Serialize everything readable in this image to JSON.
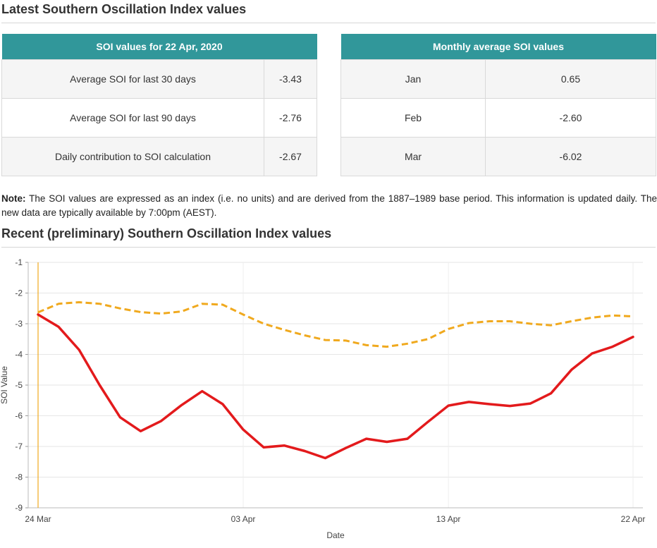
{
  "heading1": "Latest Southern Oscillation Index values",
  "table_latest": {
    "header": "SOI values for 22 Apr, 2020",
    "rows": [
      {
        "label": "Average SOI for last 30 days",
        "value": "-3.43"
      },
      {
        "label": "Average SOI for last 90 days",
        "value": "-2.76"
      },
      {
        "label": "Daily contribution to SOI calculation",
        "value": "-2.67"
      }
    ]
  },
  "table_monthly": {
    "header": "Monthly average SOI values",
    "rows": [
      {
        "month": "Jan",
        "value": "0.65"
      },
      {
        "month": "Feb",
        "value": "-2.60"
      },
      {
        "month": "Mar",
        "value": "-6.02"
      }
    ]
  },
  "note": {
    "label": "Note:",
    "text": " The SOI values are expressed as an index (i.e. no units) and are derived from the 1887–1989 base period. This information is updated daily. The new data are typically available by 7:00pm (AEST)."
  },
  "heading2": "Recent (preliminary) Southern Oscillation Index values",
  "colors": {
    "header_bg": "#31979a",
    "series_30day": "#e31a1c",
    "series_90day": "#f0a91e",
    "marker_line": "#f0a91e"
  },
  "chart_data": {
    "type": "line",
    "xlabel": "Date",
    "ylabel": "SOI Value",
    "ylim": [
      -9,
      -1
    ],
    "yticks": [
      -1,
      -2,
      -3,
      -4,
      -5,
      -6,
      -7,
      -8,
      -9
    ],
    "x_range": [
      "2020-03-24",
      "2020-04-22"
    ],
    "xticks": [
      {
        "date": "2020-03-24",
        "label": "24 Mar"
      },
      {
        "date": "2020-04-03",
        "label": "03 Apr"
      },
      {
        "date": "2020-04-13",
        "label": "13 Apr"
      },
      {
        "date": "2020-04-22",
        "label": "22 Apr"
      }
    ],
    "grid": true,
    "legend": "none",
    "x": [
      "2020-03-24",
      "2020-03-25",
      "2020-03-26",
      "2020-03-27",
      "2020-03-28",
      "2020-03-29",
      "2020-03-30",
      "2020-03-31",
      "2020-04-01",
      "2020-04-02",
      "2020-04-03",
      "2020-04-04",
      "2020-04-05",
      "2020-04-06",
      "2020-04-07",
      "2020-04-08",
      "2020-04-09",
      "2020-04-10",
      "2020-04-11",
      "2020-04-12",
      "2020-04-13",
      "2020-04-14",
      "2020-04-15",
      "2020-04-16",
      "2020-04-17",
      "2020-04-18",
      "2020-04-19",
      "2020-04-20",
      "2020-04-21",
      "2020-04-22"
    ],
    "series": [
      {
        "style": "solid",
        "values": [
          -2.7,
          -3.1,
          -3.85,
          -5.0,
          -6.05,
          -6.5,
          -6.17,
          -5.65,
          -5.2,
          -5.62,
          -6.45,
          -7.03,
          -6.97,
          -7.15,
          -7.38,
          -7.05,
          -6.75,
          -6.85,
          -6.75,
          -6.2,
          -5.67,
          -5.55,
          -5.62,
          -5.68,
          -5.6,
          -5.27,
          -4.5,
          -3.97,
          -3.75,
          -3.43
        ]
      },
      {
        "style": "dashed",
        "values": [
          -2.63,
          -2.35,
          -2.3,
          -2.35,
          -2.5,
          -2.62,
          -2.67,
          -2.6,
          -2.35,
          -2.38,
          -2.7,
          -3.0,
          -3.2,
          -3.38,
          -3.53,
          -3.55,
          -3.7,
          -3.75,
          -3.65,
          -3.5,
          -3.17,
          -2.98,
          -2.92,
          -2.92,
          -3.0,
          -3.05,
          -2.92,
          -2.8,
          -2.73,
          -2.76
        ]
      }
    ]
  }
}
